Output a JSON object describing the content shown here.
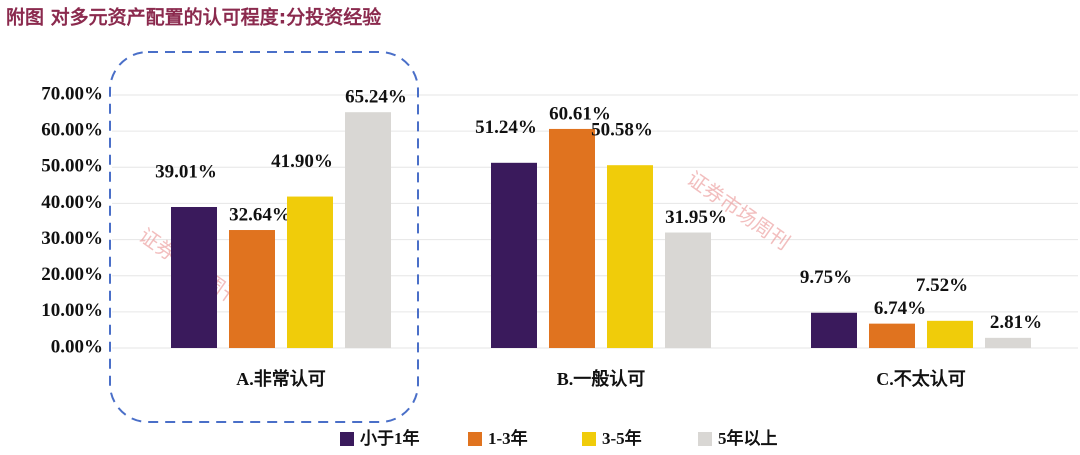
{
  "chart_data": {
    "type": "bar",
    "title": "附图 对多元资产配置的认可程度:分投资经验",
    "watermark": "证券市场周刊",
    "categories": [
      "A.非常认可",
      "B.一般认可",
      "C.不太认可"
    ],
    "series": [
      {
        "name": "小于1年",
        "color": "#3a1a5c",
        "values": [
          39.01,
          51.24,
          9.75
        ],
        "value_labels": [
          "39.01%",
          "51.24%",
          "9.75%"
        ]
      },
      {
        "name": "1-3年",
        "color": "#e0731f",
        "values": [
          32.64,
          60.61,
          6.74
        ],
        "value_labels": [
          "32.64%",
          "60.61%",
          "6.74%"
        ]
      },
      {
        "name": "3-5年",
        "color": "#f0cc0a",
        "values": [
          41.9,
          50.58,
          7.52
        ],
        "value_labels": [
          "41.90%",
          "50.58%",
          "7.52%"
        ]
      },
      {
        "name": "5年以上",
        "color": "#d9d7d4",
        "values": [
          65.24,
          31.95,
          2.81
        ],
        "value_labels": [
          "65.24%",
          "31.95%",
          "2.81%"
        ]
      }
    ],
    "ylim": [
      0,
      70
    ],
    "yticks": [
      {
        "value": 0,
        "label": "0.00%"
      },
      {
        "value": 10,
        "label": "10.00%"
      },
      {
        "value": 20,
        "label": "20.00%"
      },
      {
        "value": 30,
        "label": "30.00%"
      },
      {
        "value": 40,
        "label": "40.00%"
      },
      {
        "value": 50,
        "label": "50.00%"
      },
      {
        "value": 60,
        "label": "60.00%"
      },
      {
        "value": 70,
        "label": "70.00%"
      }
    ],
    "grid": true
  }
}
